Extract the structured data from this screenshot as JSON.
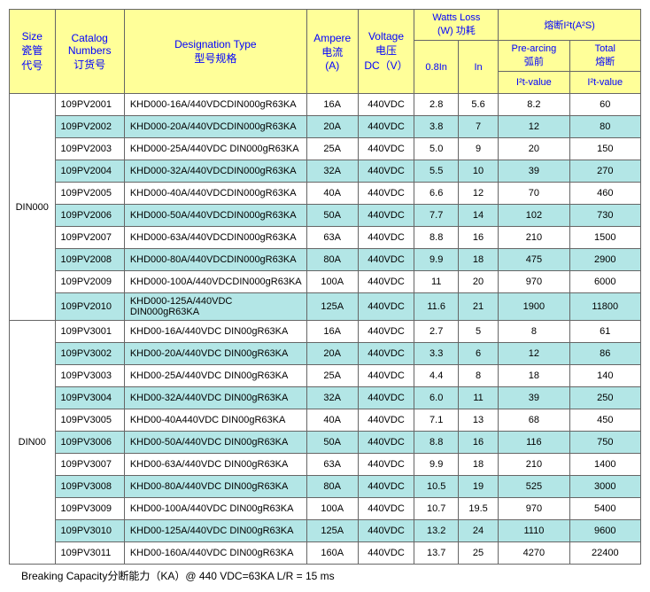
{
  "headers": {
    "size": {
      "en": "Size",
      "zh1": "瓷管",
      "zh2": "代号"
    },
    "catalog": {
      "en": "Catalog",
      "en2": "Numbers",
      "zh": "订货号"
    },
    "designation": {
      "en": "Designation Type",
      "zh": "型号规格"
    },
    "ampere": {
      "en": "Ampere",
      "zh": "电流",
      "unit": "(A)"
    },
    "voltage": {
      "en": "Voltage",
      "zh": "电压",
      "unit": "DC（V）"
    },
    "watts": {
      "en": "Watts Loss",
      "zh": "(W) 功耗",
      "c1": "0.8In",
      "c2": "In"
    },
    "i2t": {
      "title": "熔断I²t(A²S)",
      "pre_en": "Pre-arcing",
      "pre_zh": "弧前",
      "pre_sub": "I²t-value",
      "tot_en": "Total",
      "tot_zh": "熔断",
      "tot_sub": "I²t-value"
    }
  },
  "groups": [
    {
      "size": "DIN000",
      "rows": [
        {
          "cat": "109PV2001",
          "d": "KHD000-16A/440VDCDIN000gR63KA",
          "a": "16A",
          "v": "440VDC",
          "w08": "2.8",
          "win": "5.6",
          "pre": "8.2",
          "tot": "60",
          "alt": false
        },
        {
          "cat": "109PV2002",
          "d": "KHD000-20A/440VDCDIN000gR63KA",
          "a": "20A",
          "v": "440VDC",
          "w08": "3.8",
          "win": "7",
          "pre": "12",
          "tot": "80",
          "alt": true
        },
        {
          "cat": "109PV2003",
          "d": "KHD000-25A/440VDC DIN000gR63KA",
          "a": "25A",
          "v": "440VDC",
          "w08": "5.0",
          "win": "9",
          "pre": "20",
          "tot": "150",
          "alt": false
        },
        {
          "cat": "109PV2004",
          "d": "KHD000-32A/440VDCDIN000gR63KA",
          "a": "32A",
          "v": "440VDC",
          "w08": "5.5",
          "win": "10",
          "pre": "39",
          "tot": "270",
          "alt": true
        },
        {
          "cat": "109PV2005",
          "d": "KHD000-40A/440VDCDIN000gR63KA",
          "a": "40A",
          "v": "440VDC",
          "w08": "6.6",
          "win": "12",
          "pre": "70",
          "tot": "460",
          "alt": false
        },
        {
          "cat": "109PV2006",
          "d": "KHD000-50A/440VDCDIN000gR63KA",
          "a": "50A",
          "v": "440VDC",
          "w08": "7.7",
          "win": "14",
          "pre": "102",
          "tot": "730",
          "alt": true
        },
        {
          "cat": "109PV2007",
          "d": "KHD000-63A/440VDCDIN000gR63KA",
          "a": "63A",
          "v": "440VDC",
          "w08": "8.8",
          "win": "16",
          "pre": "210",
          "tot": "1500",
          "alt": false
        },
        {
          "cat": "109PV2008",
          "d": "KHD000-80A/440VDCDIN000gR63KA",
          "a": "80A",
          "v": "440VDC",
          "w08": "9.9",
          "win": "18",
          "pre": "475",
          "tot": "2900",
          "alt": true
        },
        {
          "cat": "109PV2009",
          "d": "KHD000-100A/440VDCDIN000gR63KA",
          "a": "100A",
          "v": "440VDC",
          "w08": "11",
          "win": "20",
          "pre": "970",
          "tot": "6000",
          "alt": false
        },
        {
          "cat": "109PV2010",
          "d": "KHD000-125A/440VDC DIN000gR63KA",
          "a": "125A",
          "v": "440VDC",
          "w08": "11.6",
          "win": "21",
          "pre": "1900",
          "tot": "11800",
          "alt": true
        }
      ]
    },
    {
      "size": "DIN00",
      "rows": [
        {
          "cat": "109PV3001",
          "d": "KHD00-16A/440VDC DIN00gR63KA",
          "a": "16A",
          "v": "440VDC",
          "w08": "2.7",
          "win": "5",
          "pre": "8",
          "tot": "61",
          "alt": false
        },
        {
          "cat": "109PV3002",
          "d": "KHD00-20A/440VDC DIN00gR63KA",
          "a": "20A",
          "v": "440VDC",
          "w08": "3.3",
          "win": "6",
          "pre": "12",
          "tot": "86",
          "alt": true
        },
        {
          "cat": "109PV3003",
          "d": "KHD00-25A/440VDC DIN00gR63KA",
          "a": "25A",
          "v": "440VDC",
          "w08": "4.4",
          "win": "8",
          "pre": "18",
          "tot": "140",
          "alt": false
        },
        {
          "cat": "109PV3004",
          "d": "KHD00-32A/440VDC DIN00gR63KA",
          "a": "32A",
          "v": "440VDC",
          "w08": "6.0",
          "win": "11",
          "pre": "39",
          "tot": "250",
          "alt": true
        },
        {
          "cat": "109PV3005",
          "d": "KHD00-40A440VDC DIN00gR63KA",
          "a": "40A",
          "v": "440VDC",
          "w08": "7.1",
          "win": "13",
          "pre": "68",
          "tot": "450",
          "alt": false
        },
        {
          "cat": "109PV3006",
          "d": "KHD00-50A/440VDC DIN00gR63KA",
          "a": "50A",
          "v": "440VDC",
          "w08": "8.8",
          "win": "16",
          "pre": "116",
          "tot": "750",
          "alt": true
        },
        {
          "cat": "109PV3007",
          "d": "KHD00-63A/440VDC DIN00gR63KA",
          "a": "63A",
          "v": "440VDC",
          "w08": "9.9",
          "win": "18",
          "pre": "210",
          "tot": "1400",
          "alt": false
        },
        {
          "cat": "109PV3008",
          "d": "KHD00-80A/440VDC DIN00gR63KA",
          "a": "80A",
          "v": "440VDC",
          "w08": "10.5",
          "win": "19",
          "pre": "525",
          "tot": "3000",
          "alt": true
        },
        {
          "cat": "109PV3009",
          "d": "KHD00-100A/440VDC DIN00gR63KA",
          "a": "100A",
          "v": "440VDC",
          "w08": "10.7",
          "win": "19.5",
          "pre": "970",
          "tot": "5400",
          "alt": false
        },
        {
          "cat": "109PV3010",
          "d": "KHD00-125A/440VDC DIN00gR63KA",
          "a": "125A",
          "v": "440VDC",
          "w08": "13.2",
          "win": "24",
          "pre": "1110",
          "tot": "9600",
          "alt": true
        },
        {
          "cat": "109PV3011",
          "d": "KHD00-160A/440VDC DIN00gR63KA",
          "a": "160A",
          "v": "440VDC",
          "w08": "13.7",
          "win": "25",
          "pre": "4270",
          "tot": "22400",
          "alt": false
        }
      ]
    }
  ],
  "footer": "Breaking Capacity分断能力（KA）@ 440 VDC=63KA    L/R = 15 ms",
  "colors": {
    "header_bg": "#ffff99",
    "header_text": "#0000ff",
    "alt_row_bg": "#b3e6e6",
    "border": "#666666"
  }
}
